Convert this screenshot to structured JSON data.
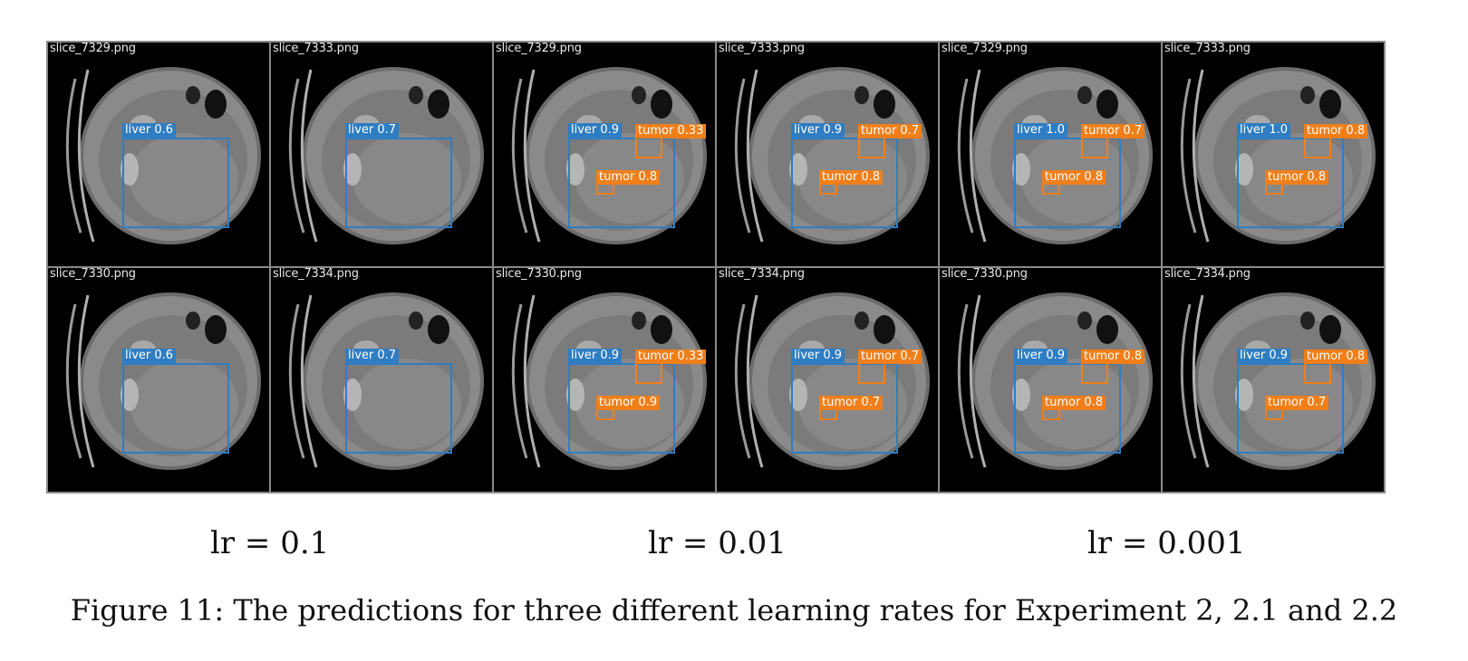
{
  "groups": [
    {
      "lr_label": "lr = 0.1",
      "tiles": [
        {
          "file": "slice_7329.png",
          "labels": {
            "liver": "liver 0.6"
          }
        },
        {
          "file": "slice_7333.png",
          "labels": {
            "liver": "liver 0.7"
          }
        },
        {
          "file": "slice_7330.png",
          "labels": {
            "liver": "liver 0.6"
          }
        },
        {
          "file": "slice_7334.png",
          "labels": {
            "liver": "liver 0.7"
          }
        }
      ]
    },
    {
      "lr_label": "lr = 0.01",
      "tiles": [
        {
          "file": "slice_7329.png",
          "labels": {
            "liver": "liver 0.9",
            "tumor_a": "tumor 0.33",
            "tumor_b": "tumor 0.8"
          }
        },
        {
          "file": "slice_7333.png",
          "labels": {
            "liver": "liver 0.9",
            "tumor_a": "tumor 0.7",
            "tumor_b": "tumor 0.8"
          }
        },
        {
          "file": "slice_7330.png",
          "labels": {
            "liver": "liver 0.9",
            "tumor_a": "tumor 0.33",
            "tumor_b": "tumor 0.9"
          }
        },
        {
          "file": "slice_7334.png",
          "labels": {
            "liver": "liver 0.9",
            "tumor_a": "tumor 0.7",
            "tumor_b": "tumor 0.7"
          }
        }
      ]
    },
    {
      "lr_label": "lr = 0.001",
      "tiles": [
        {
          "file": "slice_7329.png",
          "labels": {
            "liver": "liver 1.0",
            "tumor_a": "tumor 0.7",
            "tumor_b": "tumor 0.8"
          }
        },
        {
          "file": "slice_7333.png",
          "labels": {
            "liver": "liver 1.0",
            "tumor_a": "tumor 0.8",
            "tumor_b": "tumor 0.8"
          }
        },
        {
          "file": "slice_7330.png",
          "labels": {
            "liver": "liver 0.9",
            "tumor_a": "tumor 0.8",
            "tumor_b": "tumor 0.8"
          }
        },
        {
          "file": "slice_7334.png",
          "labels": {
            "liver": "liver 0.9",
            "tumor_a": "tumor 0.8",
            "tumor_b": "tumor 0.7"
          }
        }
      ]
    }
  ],
  "caption": "Figure 11: The predictions for three different learning rates for Experiment 2, 2.1 and 2.2",
  "colors": {
    "liver": "#2f7dc2",
    "tumor": "#f07f1a"
  }
}
